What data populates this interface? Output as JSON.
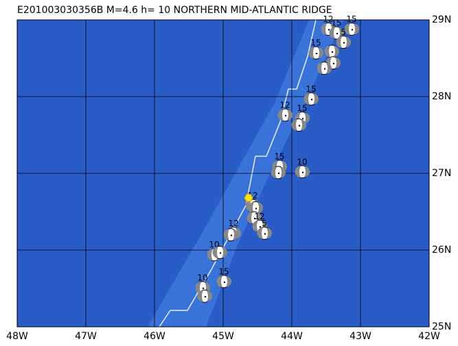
{
  "title": "E201003030356B M=4.6 h= 10 NORTHERN MID-ATLANTIC RIDGE",
  "xlim": [
    -48,
    -42
  ],
  "ylim": [
    25,
    29
  ],
  "xticks": [
    {
      "value": -48,
      "label": "48W"
    },
    {
      "value": -47,
      "label": "47W"
    },
    {
      "value": -46,
      "label": "46W"
    },
    {
      "value": -45,
      "label": "45W"
    },
    {
      "value": -44,
      "label": "44W"
    },
    {
      "value": -43,
      "label": "43W"
    },
    {
      "value": -42,
      "label": "42W"
    }
  ],
  "yticks": [
    {
      "value": 25,
      "label": "25N"
    },
    {
      "value": 26,
      "label": "26N"
    },
    {
      "value": 27,
      "label": "27N"
    },
    {
      "value": 28,
      "label": "28N"
    },
    {
      "value": 29,
      "label": "29N"
    }
  ],
  "epicenter": {
    "lon": -44.63,
    "lat": 26.68
  },
  "events": [
    {
      "lon": -43.13,
      "lat": 28.88,
      "depth": 15
    },
    {
      "lon": -43.47,
      "lat": 28.88,
      "depth": 12
    },
    {
      "lon": -43.35,
      "lat": 28.83,
      "depth": 15
    },
    {
      "lon": -43.25,
      "lat": 28.71,
      "depth": 5
    },
    {
      "lon": -43.42,
      "lat": 28.59
    },
    {
      "lon": -43.65,
      "lat": 28.57,
      "depth": 15
    },
    {
      "lon": -43.4,
      "lat": 28.44
    },
    {
      "lon": -43.53,
      "lat": 28.37
    },
    {
      "lon": -43.72,
      "lat": 27.97,
      "depth": 15
    },
    {
      "lon": -44.1,
      "lat": 27.76,
      "depth": 12
    },
    {
      "lon": -43.85,
      "lat": 27.72,
      "depth": 15
    },
    {
      "lon": -43.9,
      "lat": 27.63
    },
    {
      "lon": -44.18,
      "lat": 27.09,
      "depth": 15
    },
    {
      "lon": -44.2,
      "lat": 27.01
    },
    {
      "lon": -43.85,
      "lat": 27.02,
      "depth": 10
    },
    {
      "lon": -44.57,
      "lat": 26.58,
      "depth": 12
    },
    {
      "lon": -44.53,
      "lat": 26.55
    },
    {
      "lon": -44.55,
      "lat": 26.42
    },
    {
      "lon": -44.47,
      "lat": 26.31,
      "depth": 12
    },
    {
      "lon": -44.4,
      "lat": 26.22,
      "depth": 5
    },
    {
      "lon": -44.85,
      "lat": 26.22,
      "depth": 12
    },
    {
      "lon": -44.89,
      "lat": 26.2
    },
    {
      "lon": -45.13,
      "lat": 25.94,
      "depth": 10
    },
    {
      "lon": -45.05,
      "lat": 25.97
    },
    {
      "lon": -44.99,
      "lat": 25.59,
      "depth": 15
    },
    {
      "lon": -45.3,
      "lat": 25.51,
      "depth": 10
    },
    {
      "lon": -45.27,
      "lat": 25.4
    }
  ]
}
